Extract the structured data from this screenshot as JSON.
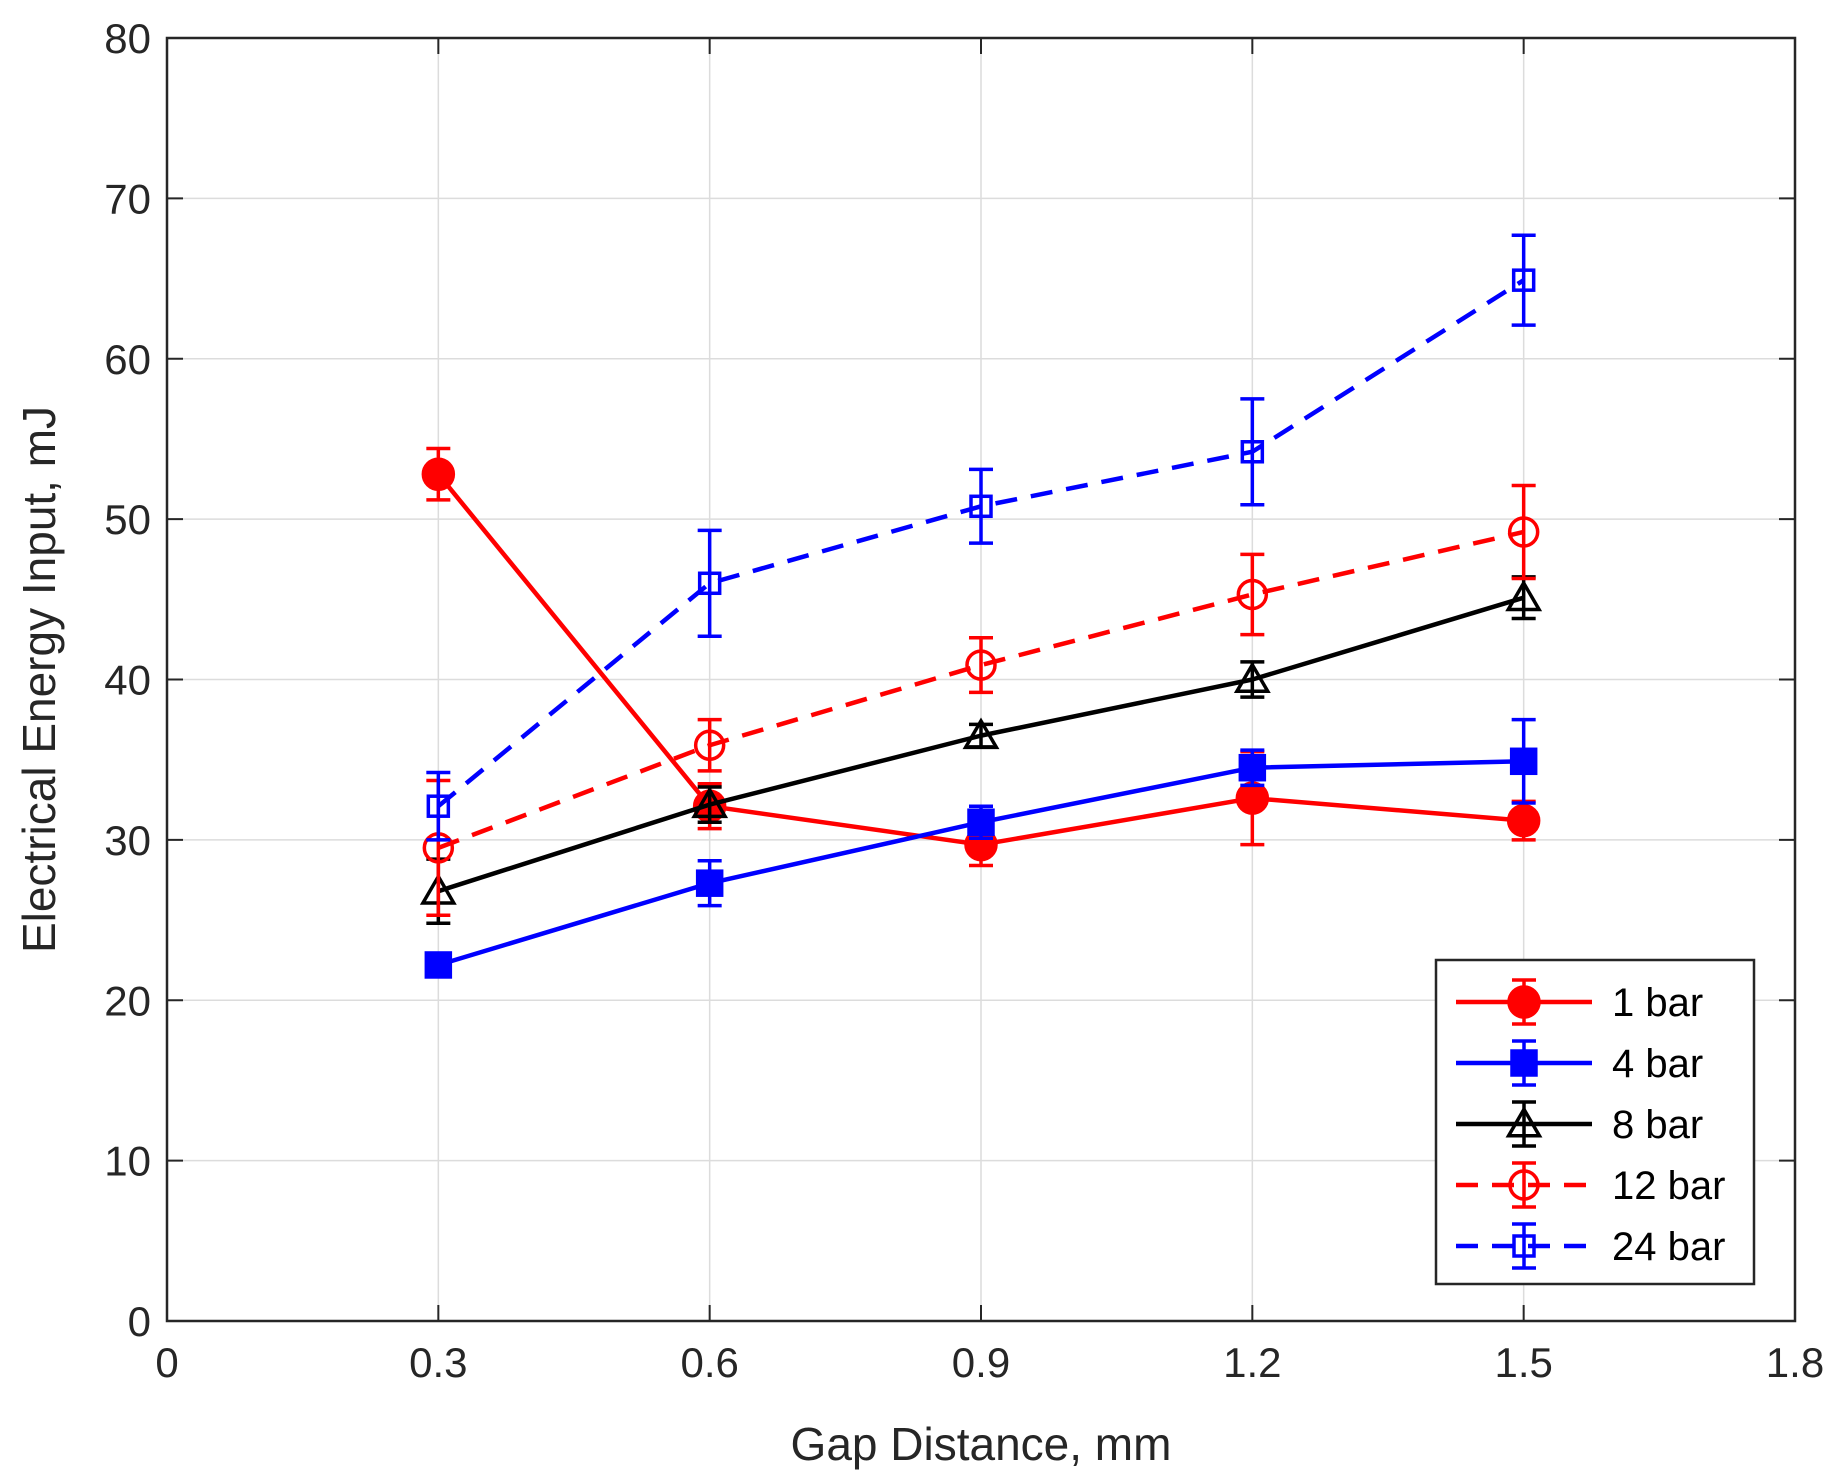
{
  "chart_data": {
    "type": "line",
    "title": "",
    "xlabel": "Gap Distance, mm",
    "ylabel": "Electrical Energy Input, mJ",
    "xlim": [
      0,
      1.8
    ],
    "ylim": [
      0,
      80
    ],
    "xticks": [
      0,
      0.3,
      0.6,
      0.9,
      1.2,
      1.5,
      1.8
    ],
    "xtick_labels": [
      "0",
      "0.3",
      "0.6",
      "0.9",
      "1.2",
      "1.5",
      "1.8"
    ],
    "yticks": [
      0,
      10,
      20,
      30,
      40,
      50,
      60,
      70,
      80
    ],
    "ytick_labels": [
      "0",
      "10",
      "20",
      "30",
      "40",
      "50",
      "60",
      "70",
      "80"
    ],
    "grid": true,
    "legend_position": "bottom-right",
    "x": [
      0.3,
      0.6,
      0.9,
      1.2,
      1.5
    ],
    "series": [
      {
        "name": "1 bar",
        "values": [
          52.8,
          32.1,
          29.7,
          32.6,
          31.2
        ],
        "errors": [
          1.6,
          1.4,
          1.3,
          2.9,
          1.2
        ],
        "color": "#ff0000",
        "marker": "circle-filled",
        "linestyle": "solid"
      },
      {
        "name": "4 bar",
        "values": [
          22.2,
          27.3,
          31.1,
          34.5,
          34.9
        ],
        "errors": [
          0.6,
          1.4,
          1.0,
          1.1,
          2.6
        ],
        "color": "#0000ff",
        "marker": "square-filled",
        "linestyle": "solid"
      },
      {
        "name": "8 bar",
        "values": [
          26.8,
          32.2,
          36.5,
          40.0,
          45.1
        ],
        "errors": [
          2.0,
          1.1,
          0.7,
          1.1,
          1.3
        ],
        "color": "#000000",
        "marker": "triangle-open",
        "linestyle": "solid"
      },
      {
        "name": "12 bar",
        "values": [
          29.5,
          35.9,
          40.9,
          45.3,
          49.2
        ],
        "errors": [
          4.2,
          1.6,
          1.7,
          2.5,
          2.9
        ],
        "color": "#ff0000",
        "marker": "circle-open",
        "linestyle": "dashed"
      },
      {
        "name": "24 bar",
        "values": [
          32.1,
          46.0,
          50.8,
          54.2,
          64.9
        ],
        "errors": [
          2.1,
          3.3,
          2.3,
          3.3,
          2.8
        ],
        "color": "#0000ff",
        "marker": "square-open",
        "linestyle": "dashed"
      }
    ]
  }
}
